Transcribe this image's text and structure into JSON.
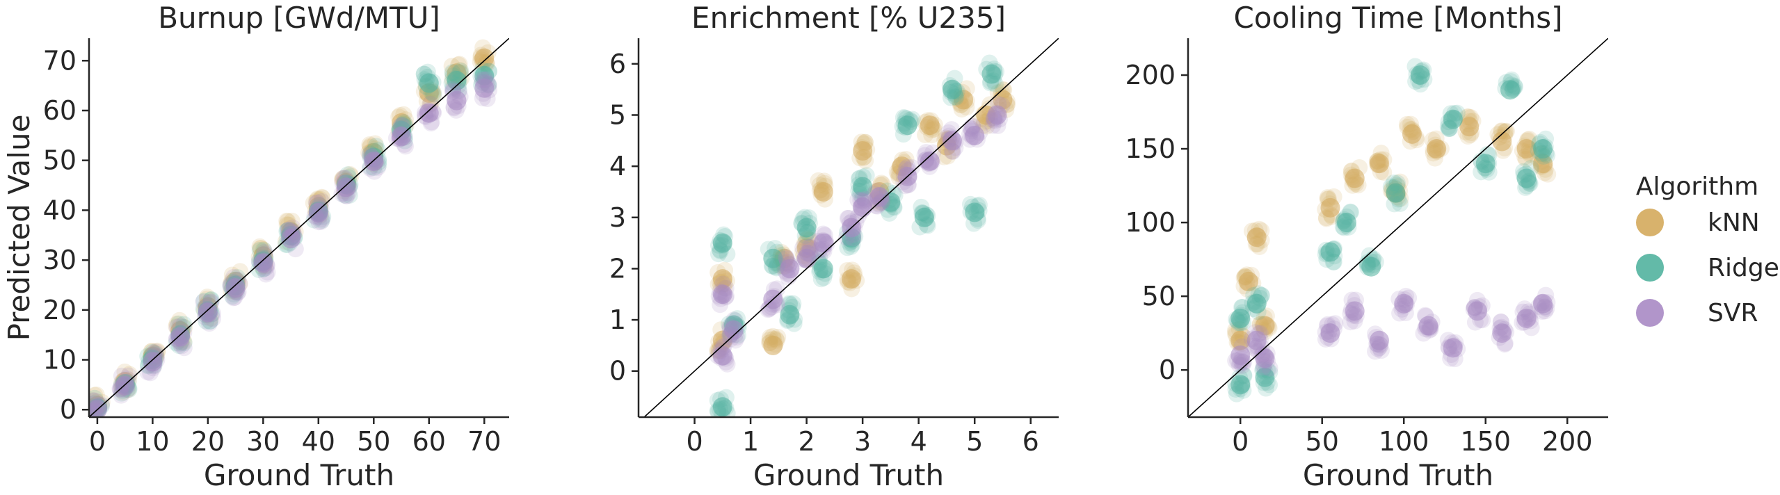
{
  "figure": {
    "colors": {
      "kNN": "#d4aa5c",
      "Ridge": "#52b29e",
      "SVR": "#a98ac4",
      "axis": "#262626",
      "diagonal": "#000000"
    },
    "legend": {
      "title": "Algorithm",
      "placement": "right",
      "items": [
        {
          "label": "kNN",
          "color": "#d4aa5c"
        },
        {
          "label": "Ridge",
          "color": "#52b29e"
        },
        {
          "label": "SVR",
          "color": "#a98ac4"
        }
      ]
    }
  },
  "chart_data": [
    {
      "type": "scatter",
      "title": "Burnup [GWd/MTU]",
      "xlabel": "Ground Truth",
      "ylabel": "Predicted Value",
      "xlim": [
        -1.5,
        74.5
      ],
      "ylim": [
        -1.5,
        74.5
      ],
      "xticks": [
        0,
        10,
        20,
        30,
        40,
        50,
        60,
        70
      ],
      "yticks": [
        0,
        10,
        20,
        30,
        40,
        50,
        60,
        70
      ],
      "diagonal": true,
      "grid": false,
      "series": [
        {
          "name": "kNN",
          "color": "#d4aa5c",
          "points": [
            [
              0,
              0.8
            ],
            [
              5,
              5.6
            ],
            [
              10,
              10.7
            ],
            [
              15,
              15.8
            ],
            [
              20,
              20.6
            ],
            [
              25,
              25.7
            ],
            [
              30,
              30.8
            ],
            [
              35,
              35.6
            ],
            [
              40,
              40.7
            ],
            [
              45,
              45.5
            ],
            [
              50,
              51.5
            ],
            [
              55,
              57.5
            ],
            [
              60,
              63.5
            ],
            [
              65,
              67.5
            ],
            [
              70,
              70.5
            ]
          ]
        },
        {
          "name": "Ridge",
          "color": "#52b29e",
          "points": [
            [
              0,
              0.3
            ],
            [
              5,
              5.2
            ],
            [
              10,
              10.1
            ],
            [
              15,
              15.0
            ],
            [
              20,
              19.8
            ],
            [
              25,
              24.9
            ],
            [
              30,
              29.8
            ],
            [
              35,
              34.9
            ],
            [
              40,
              39.8
            ],
            [
              45,
              45.2
            ],
            [
              50,
              50.6
            ],
            [
              55,
              56.0
            ],
            [
              60,
              65.5
            ],
            [
              65,
              66.0
            ],
            [
              70,
              67.0
            ]
          ]
        },
        {
          "name": "SVR",
          "color": "#a98ac4",
          "points": [
            [
              0,
              0.0
            ],
            [
              5,
              4.8
            ],
            [
              10,
              9.6
            ],
            [
              15,
              14.6
            ],
            [
              20,
              19.5
            ],
            [
              25,
              24.4
            ],
            [
              30,
              29.4
            ],
            [
              35,
              34.3
            ],
            [
              40,
              39.5
            ],
            [
              45,
              44.6
            ],
            [
              50,
              49.8
            ],
            [
              55,
              54.8
            ],
            [
              60,
              59.5
            ],
            [
              65,
              62.0
            ],
            [
              70,
              64.5
            ]
          ]
        }
      ]
    },
    {
      "type": "scatter",
      "title": "Enrichment [% U235]",
      "xlabel": "Ground Truth",
      "ylabel": "",
      "xlim": [
        -1.0,
        6.5
      ],
      "ylim": [
        -0.9,
        6.5
      ],
      "xticks": [
        0,
        1,
        2,
        3,
        4,
        5,
        6
      ],
      "yticks": [
        0,
        1,
        2,
        3,
        4,
        5,
        6
      ],
      "diagonal": true,
      "grid": false,
      "series": [
        {
          "name": "kNN",
          "color": "#d4aa5c",
          "points": [
            [
              0.5,
              0.6
            ],
            [
              0.5,
              1.8
            ],
            [
              1.4,
              0.5
            ],
            [
              1.6,
              2.2
            ],
            [
              2.0,
              2.4
            ],
            [
              2.3,
              3.5
            ],
            [
              2.8,
              1.8
            ],
            [
              3.0,
              4.3
            ],
            [
              3.3,
              3.5
            ],
            [
              3.7,
              4.0
            ],
            [
              4.2,
              4.8
            ],
            [
              4.5,
              4.4
            ],
            [
              4.8,
              5.3
            ],
            [
              5.2,
              5.0
            ],
            [
              5.5,
              5.3
            ]
          ]
        },
        {
          "name": "Ridge",
          "color": "#52b29e",
          "points": [
            [
              0.5,
              -0.7
            ],
            [
              0.5,
              2.5
            ],
            [
              0.7,
              0.9
            ],
            [
              1.4,
              2.2
            ],
            [
              1.7,
              1.1
            ],
            [
              2.0,
              2.8
            ],
            [
              2.3,
              2.0
            ],
            [
              2.8,
              2.6
            ],
            [
              3.0,
              3.6
            ],
            [
              3.5,
              3.3
            ],
            [
              3.8,
              4.8
            ],
            [
              4.1,
              3.0
            ],
            [
              4.6,
              5.5
            ],
            [
              5.0,
              3.1
            ],
            [
              5.3,
              5.8
            ]
          ]
        },
        {
          "name": "SVR",
          "color": "#a98ac4",
          "points": [
            [
              0.5,
              0.3
            ],
            [
              0.5,
              1.5
            ],
            [
              0.7,
              0.8
            ],
            [
              1.4,
              1.4
            ],
            [
              1.7,
              2.0
            ],
            [
              2.0,
              2.2
            ],
            [
              2.3,
              2.5
            ],
            [
              2.8,
              2.8
            ],
            [
              3.0,
              3.2
            ],
            [
              3.3,
              3.4
            ],
            [
              3.8,
              3.8
            ],
            [
              4.2,
              4.1
            ],
            [
              4.6,
              4.5
            ],
            [
              5.0,
              4.6
            ],
            [
              5.4,
              5.0
            ]
          ]
        }
      ]
    },
    {
      "type": "scatter",
      "title": "Cooling Time [Months]",
      "xlabel": "Ground Truth",
      "ylabel": "",
      "xlim": [
        -32,
        225
      ],
      "ylim": [
        -32,
        225
      ],
      "xticks": [
        0,
        50,
        100,
        150,
        200
      ],
      "yticks": [
        0,
        50,
        100,
        150,
        200
      ],
      "diagonal": true,
      "grid": false,
      "series": [
        {
          "name": "kNN",
          "color": "#d4aa5c",
          "points": [
            [
              0,
              20
            ],
            [
              5,
              60
            ],
            [
              10,
              90
            ],
            [
              15,
              30
            ],
            [
              55,
              110
            ],
            [
              70,
              130
            ],
            [
              85,
              140
            ],
            [
              95,
              120
            ],
            [
              105,
              160
            ],
            [
              120,
              150
            ],
            [
              140,
              165
            ],
            [
              160,
              155
            ],
            [
              175,
              150
            ],
            [
              185,
              140
            ]
          ]
        },
        {
          "name": "Ridge",
          "color": "#52b29e",
          "points": [
            [
              0,
              -10
            ],
            [
              0,
              35
            ],
            [
              10,
              45
            ],
            [
              15,
              -5
            ],
            [
              55,
              80
            ],
            [
              65,
              100
            ],
            [
              80,
              70
            ],
            [
              95,
              120
            ],
            [
              110,
              200
            ],
            [
              130,
              170
            ],
            [
              150,
              140
            ],
            [
              165,
              190
            ],
            [
              175,
              130
            ],
            [
              185,
              150
            ]
          ]
        },
        {
          "name": "SVR",
          "color": "#a98ac4",
          "points": [
            [
              0,
              10
            ],
            [
              10,
              20
            ],
            [
              15,
              8
            ],
            [
              55,
              25
            ],
            [
              70,
              40
            ],
            [
              85,
              20
            ],
            [
              100,
              45
            ],
            [
              115,
              30
            ],
            [
              130,
              15
            ],
            [
              145,
              40
            ],
            [
              160,
              25
            ],
            [
              175,
              35
            ],
            [
              185,
              45
            ]
          ]
        }
      ]
    }
  ]
}
